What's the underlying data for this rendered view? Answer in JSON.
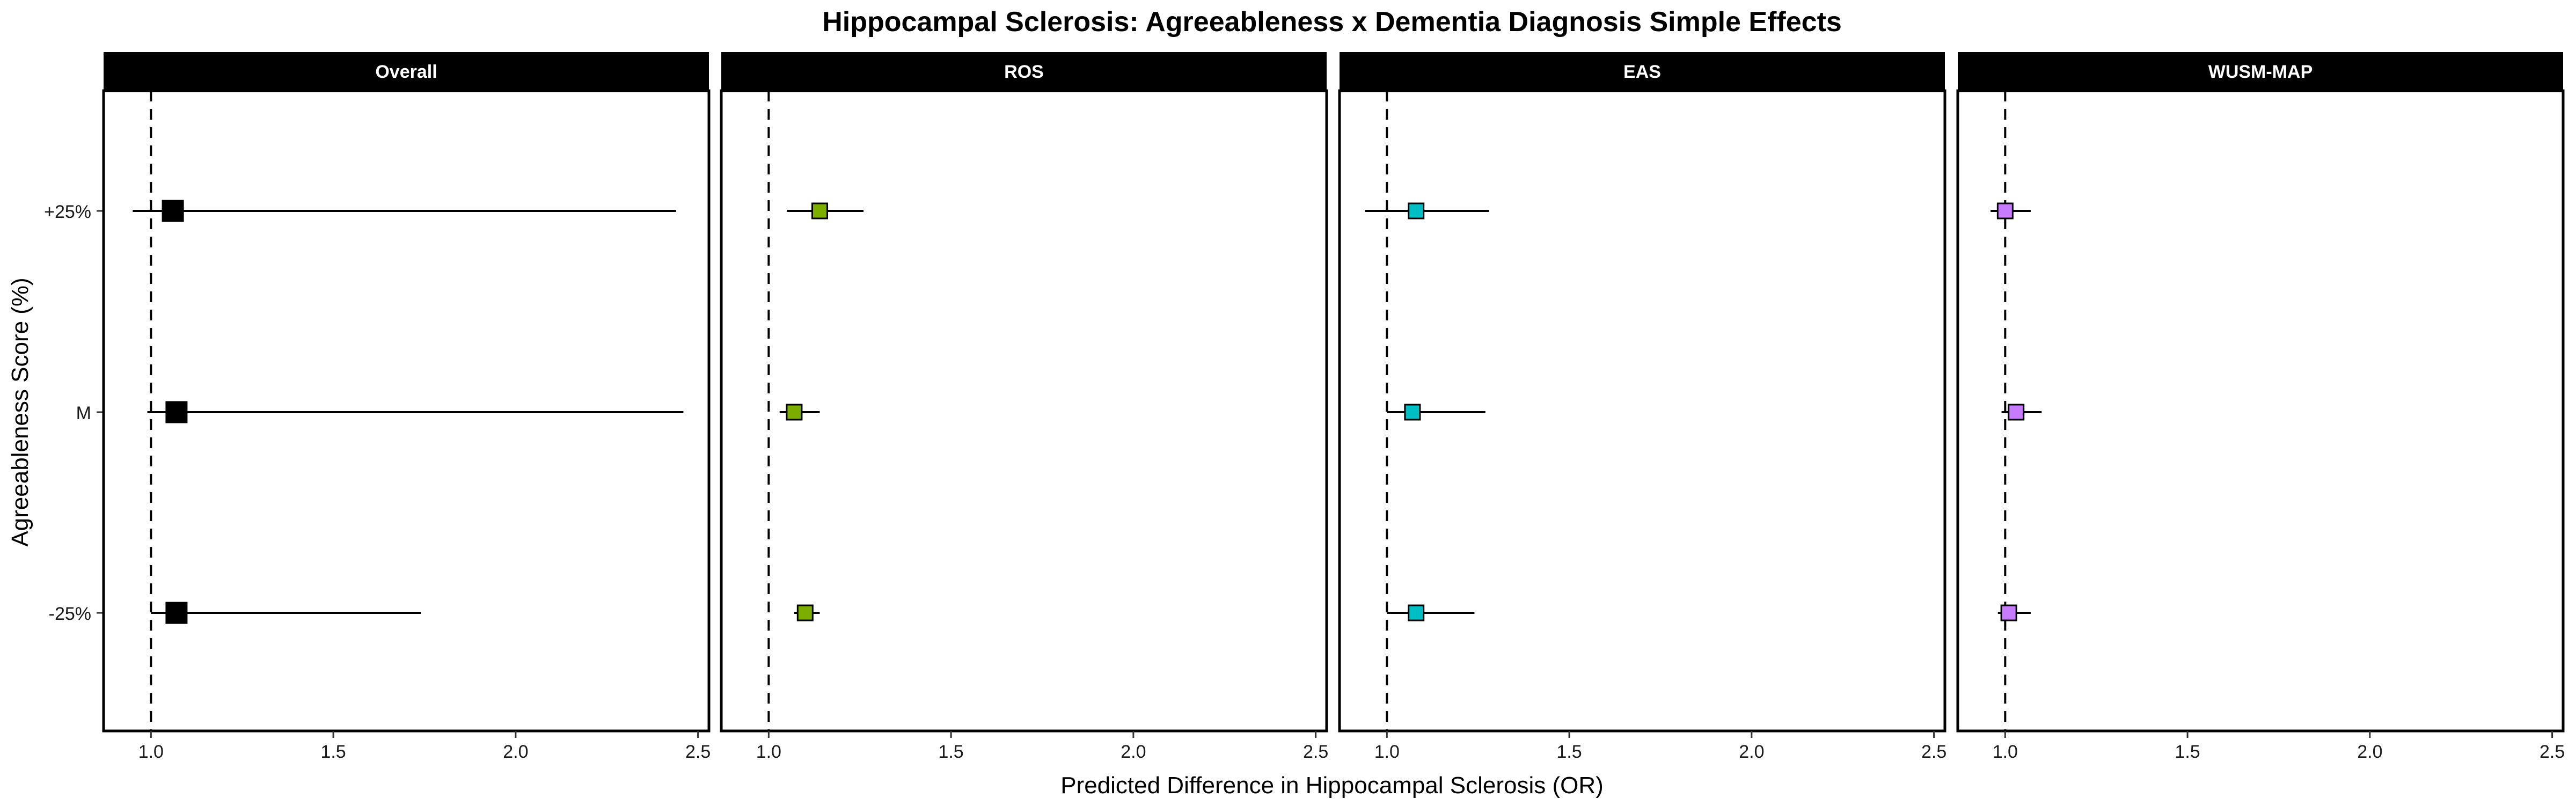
{
  "chart_data": {
    "type": "scatter",
    "subtype": "forest-plot",
    "title": "Hippocampal Sclerosis: Agreeableness x Dementia Diagnosis Simple Effects",
    "xlabel": "Predicted Difference in Hippocampal Sclerosis (OR)",
    "ylabel": "Agreeableness Score (%)",
    "categories": [
      "+25%",
      "M",
      "-25%"
    ],
    "x_ticks": [
      "1.0",
      "1.5",
      "2.0",
      "2.5"
    ],
    "xlim": [
      0.87,
      2.53
    ],
    "reference_line": 1.0,
    "grid": false,
    "legend": "none",
    "panels": [
      {
        "name": "Overall",
        "color": "#000000",
        "points": [
          {
            "category": "+25%",
            "estimate": 1.06,
            "lower": 0.95,
            "upper": 2.44
          },
          {
            "category": "M",
            "estimate": 1.07,
            "lower": 0.99,
            "upper": 2.46
          },
          {
            "category": "-25%",
            "estimate": 1.07,
            "lower": 1.0,
            "upper": 1.74
          }
        ]
      },
      {
        "name": "ROS",
        "color": "#7CAE00",
        "points": [
          {
            "category": "+25%",
            "estimate": 1.14,
            "lower": 1.05,
            "upper": 1.26
          },
          {
            "category": "M",
            "estimate": 1.07,
            "lower": 1.03,
            "upper": 1.14
          },
          {
            "category": "-25%",
            "estimate": 1.1,
            "lower": 1.07,
            "upper": 1.14
          }
        ]
      },
      {
        "name": "EAS",
        "color": "#00BFC4",
        "points": [
          {
            "category": "+25%",
            "estimate": 1.08,
            "lower": 0.94,
            "upper": 1.28
          },
          {
            "category": "M",
            "estimate": 1.07,
            "lower": 1.0,
            "upper": 1.27
          },
          {
            "category": "-25%",
            "estimate": 1.08,
            "lower": 1.0,
            "upper": 1.24
          }
        ]
      },
      {
        "name": "WUSM-MAP",
        "color": "#C77CFF",
        "points": [
          {
            "category": "+25%",
            "estimate": 1.0,
            "lower": 0.96,
            "upper": 1.07
          },
          {
            "category": "M",
            "estimate": 1.03,
            "lower": 0.99,
            "upper": 1.1
          },
          {
            "category": "-25%",
            "estimate": 1.01,
            "lower": 0.98,
            "upper": 1.07
          }
        ]
      }
    ]
  }
}
